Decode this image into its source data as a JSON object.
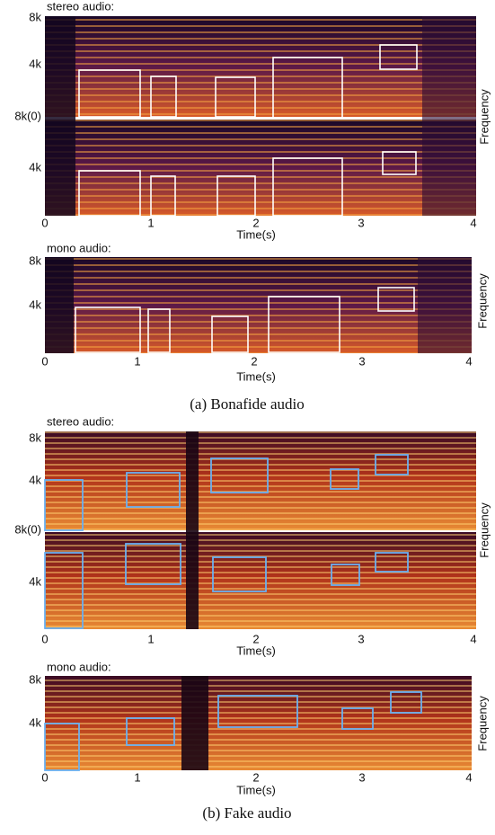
{
  "figure": {
    "panels": [
      {
        "label": "stereo audio:",
        "y_labels": [
          "8k",
          "4k",
          "8k(0)",
          "4k"
        ],
        "x_ticks": [
          "0",
          "1",
          "2",
          "3",
          "4"
        ],
        "x_label": "Time(s)",
        "side_label": "Frequency"
      },
      {
        "label": "mono audio:",
        "y_labels": [
          "8k",
          "4k"
        ],
        "x_ticks": [
          "0",
          "1",
          "2",
          "3",
          "4"
        ],
        "x_label": "Time(s)",
        "side_label": "Frequency"
      },
      {
        "label": "stereo audio:",
        "y_labels": [
          "8k",
          "4k",
          "8k(0)",
          "4k"
        ],
        "x_ticks": [
          "0",
          "1",
          "2",
          "3",
          "4"
        ],
        "x_label": "Time(s)",
        "side_label": "Frequency"
      },
      {
        "label": "mono audio:",
        "y_labels": [
          "8k",
          "4k"
        ],
        "x_ticks": [
          "0",
          "1",
          "2",
          "3",
          "4"
        ],
        "x_label": "Time(s)",
        "side_label": "Frequency"
      }
    ],
    "captions": [
      "(a) Bonafide audio",
      "(b) Fake audio"
    ]
  }
}
